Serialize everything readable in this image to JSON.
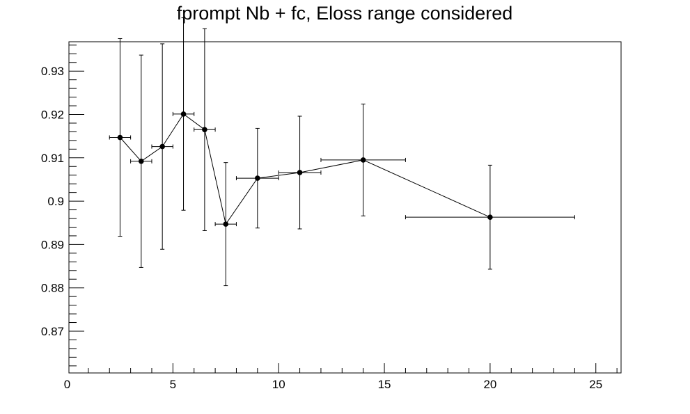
{
  "chart_data": {
    "type": "scatter",
    "title": "fprompt Nb + fc, Eloss range considered",
    "xlabel": "",
    "ylabel": "",
    "xlim": [
      0,
      26.2
    ],
    "ylim": [
      0.8604,
      0.9372
    ],
    "x_ticks": [
      0,
      5,
      10,
      15,
      20,
      25
    ],
    "y_ticks": [
      0.87,
      0.88,
      0.89,
      0.9,
      0.91,
      0.92,
      0.93
    ],
    "x_tick_labels": [
      "0",
      "5",
      "10",
      "15",
      "20",
      "25"
    ],
    "y_tick_labels": [
      "0.87",
      "0.88",
      "0.89",
      "0.9",
      "0.91",
      "0.92",
      "0.93"
    ],
    "grid": false,
    "legend": "none",
    "series": [
      {
        "connected": true,
        "color": "#000000",
        "points": [
          {
            "x": 2.5,
            "y": 0.9147,
            "xerr": 0.5,
            "yerr": 0.0228
          },
          {
            "x": 3.5,
            "y": 0.9092,
            "xerr": 0.5,
            "yerr": 0.0245
          },
          {
            "x": 4.5,
            "y": 0.9126,
            "xerr": 0.5,
            "yerr": 0.0237
          },
          {
            "x": 5.5,
            "y": 0.9201,
            "xerr": 0.5,
            "yerr": 0.0222
          },
          {
            "x": 6.5,
            "y": 0.9165,
            "xerr": 0.5,
            "yerr": 0.0233
          },
          {
            "x": 7.5,
            "y": 0.8947,
            "xerr": 0.5,
            "yerr": 0.0142
          },
          {
            "x": 9,
            "y": 0.9053,
            "xerr": 1,
            "yerr": 0.0115
          },
          {
            "x": 11,
            "y": 0.9066,
            "xerr": 1,
            "yerr": 0.013
          },
          {
            "x": 14,
            "y": 0.9095,
            "xerr": 2,
            "yerr": 0.0129
          },
          {
            "x": 20,
            "y": 0.8963,
            "xerr": 4,
            "yerr": 0.012
          }
        ]
      }
    ]
  }
}
